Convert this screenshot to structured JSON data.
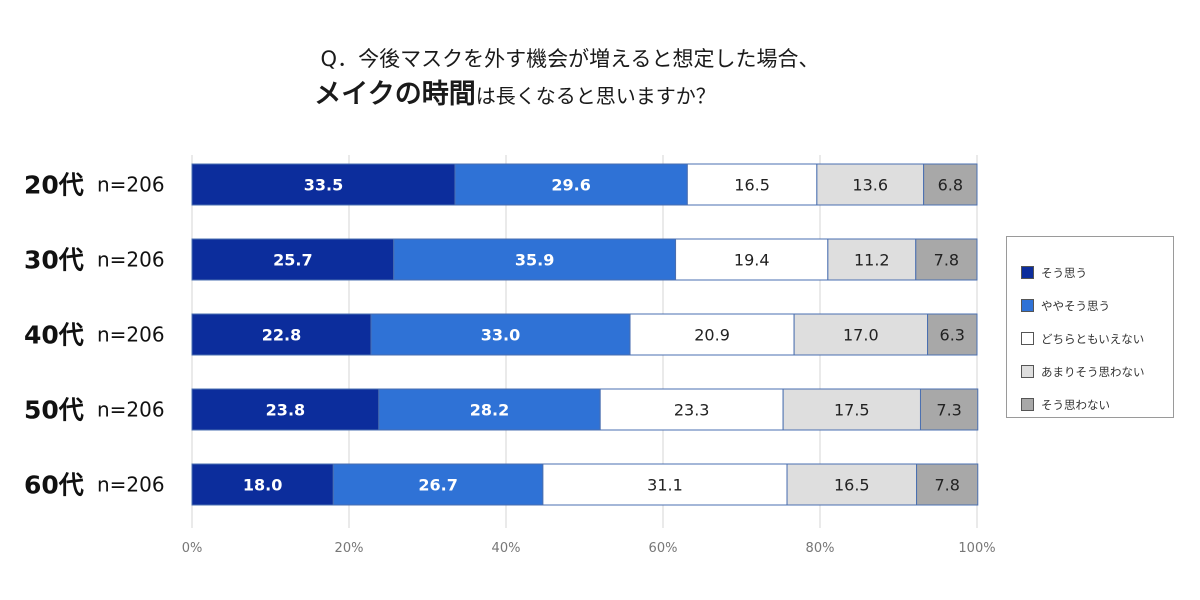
{
  "title": {
    "prefix": "Q．今後マスクを外す機会が増えると想定した場合、",
    "strong": "メイクの時間",
    "suffix": "は長くなると思いますか？"
  },
  "chart_data": {
    "type": "bar",
    "orientation": "horizontal",
    "stacked": true,
    "percent_axis": true,
    "categories": [
      "20代",
      "30代",
      "40代",
      "50代",
      "60代"
    ],
    "sample_sizes": [
      "n=206",
      "n=206",
      "n=206",
      "n=206",
      "n=206"
    ],
    "series": [
      {
        "name": "そう思う",
        "color": "#0c2d9c",
        "label_color": "#ffffff",
        "values": [
          33.5,
          25.7,
          22.8,
          23.8,
          18.0
        ]
      },
      {
        "name": "ややそう思う",
        "color": "#2f72d6",
        "label_color": "#ffffff",
        "values": [
          29.6,
          35.9,
          33.0,
          28.2,
          26.7
        ]
      },
      {
        "name": "どちらともいえない",
        "color": "#ffffff",
        "label_color": "#222222",
        "values": [
          16.5,
          19.4,
          20.9,
          23.3,
          31.1
        ]
      },
      {
        "name": "あまりそう思わない",
        "color": "#dedede",
        "label_color": "#222222",
        "values": [
          13.6,
          11.2,
          17.0,
          17.5,
          16.5
        ]
      },
      {
        "name": "そう思わない",
        "color": "#a8a8a8",
        "label_color": "#222222",
        "values": [
          6.8,
          7.8,
          6.3,
          7.3,
          7.8
        ]
      }
    ],
    "xlim": [
      0,
      100
    ],
    "xticks": [
      "0%",
      "20%",
      "40%",
      "60%",
      "80%",
      "100%"
    ],
    "grid": true,
    "legend_position": "right"
  }
}
